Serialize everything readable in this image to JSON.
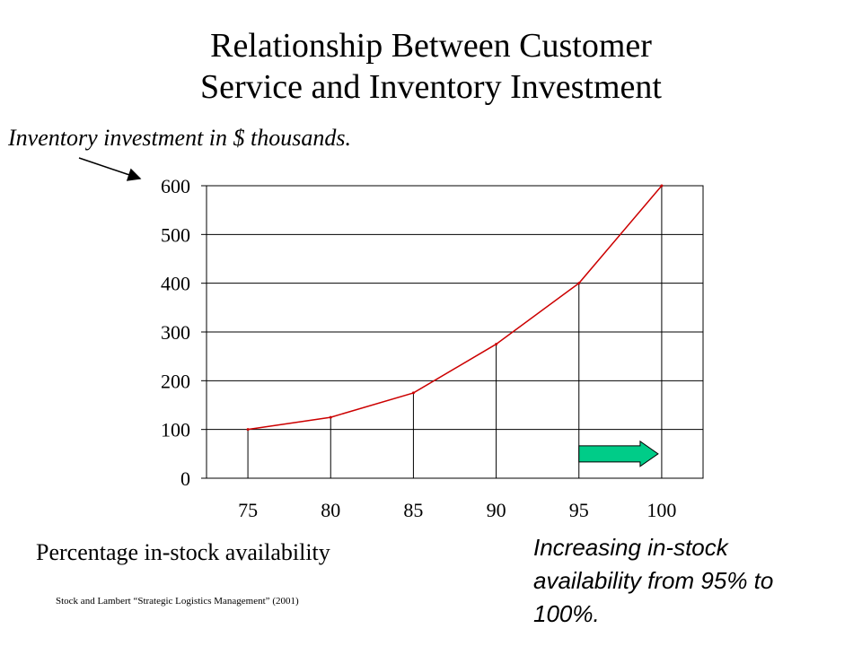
{
  "slide": {
    "title_line1": "Relationship Between Customer",
    "title_line2": "Service and Inventory Investment",
    "y_annotation": "Inventory investment in $ thousands.",
    "x_annotation": "Percentage in-stock availability",
    "note": "Increasing in-stock availability from 95% to 100%.",
    "citation": "Stock and Lambert “Strategic Logistics Management” (2001)"
  },
  "chart_data": {
    "type": "line",
    "title": "",
    "xlabel": "Percentage in-stock availability",
    "ylabel": "Inventory investment in $ thousands.",
    "x": [
      75,
      80,
      85,
      90,
      95,
      100
    ],
    "series": [
      {
        "values": [
          100,
          125,
          175,
          275,
          400,
          600
        ],
        "color": "#cc0000"
      }
    ],
    "x_ticks": [
      "75",
      "80",
      "85",
      "90",
      "95",
      "100"
    ],
    "y_ticks": [
      0,
      100,
      200,
      300,
      400,
      500,
      600
    ],
    "ylim": [
      0,
      600
    ],
    "grid": "horizontal",
    "drop_lines": true,
    "arrow": {
      "from_x": 95,
      "to_x": 100,
      "y": 50,
      "color": "#00cc88"
    }
  }
}
